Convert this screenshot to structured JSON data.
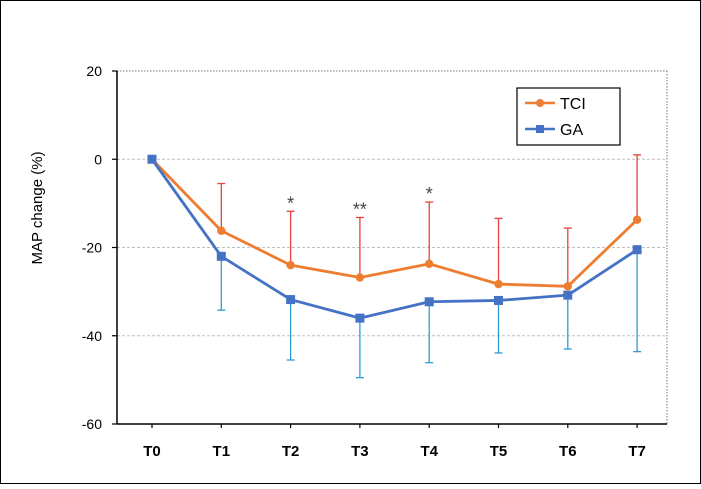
{
  "chart_data": {
    "type": "line",
    "ylabel": "MAP change (%)",
    "xlabel": "",
    "categories": [
      "T0",
      "T1",
      "T2",
      "T3",
      "T4",
      "T5",
      "T6",
      "T7"
    ],
    "ylim": [
      -60,
      20
    ],
    "yticks": [
      20,
      0,
      -20,
      -40,
      -60
    ],
    "grid": "horizontal dashed",
    "legend_position": "top-right",
    "series": [
      {
        "name": "TCI",
        "color": "#ED7D31",
        "error_color": "#E8413C",
        "error_direction": "up",
        "marker": "circle",
        "values": [
          0,
          -16.2,
          -24,
          -26.8,
          -23.7,
          -28.3,
          -28.8,
          -13.7
        ],
        "errors": [
          0,
          10.7,
          12.2,
          13.6,
          14.0,
          14.9,
          13.2,
          14.7
        ]
      },
      {
        "name": "GA",
        "color": "#4472C4",
        "error_color": "#2E9BD6",
        "error_direction": "down",
        "marker": "square",
        "values": [
          0,
          -22,
          -31.8,
          -36,
          -32.3,
          -32,
          -30.8,
          -20.5
        ],
        "errors": [
          0,
          12.2,
          13.7,
          13.5,
          13.8,
          11.9,
          12.2,
          23.1
        ]
      }
    ],
    "annotations": [
      {
        "category": "T2",
        "text": "*"
      },
      {
        "category": "T3",
        "text": "**"
      },
      {
        "category": "T4",
        "text": "*"
      }
    ]
  }
}
